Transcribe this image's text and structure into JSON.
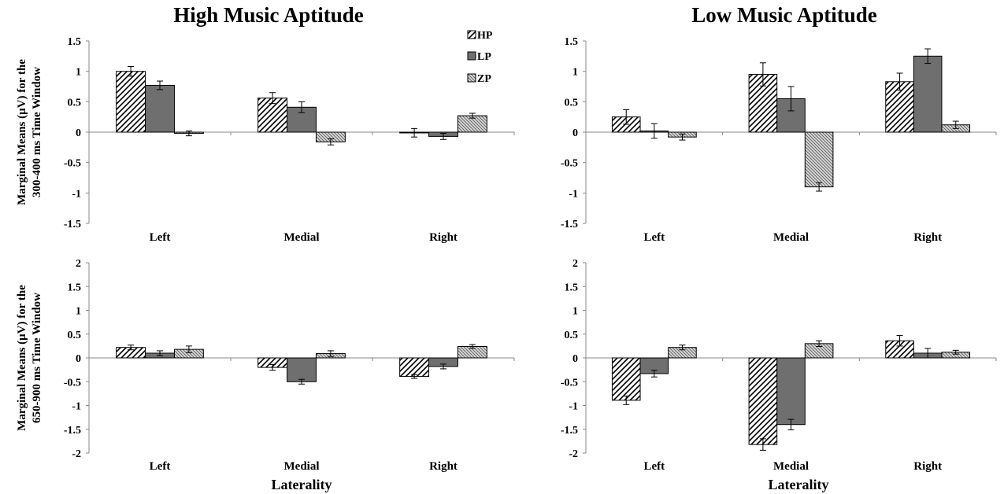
{
  "figure": {
    "column_titles": [
      "High Music Aptitude",
      "Low Music Aptitude"
    ],
    "row_ylabels": [
      [
        "Marginal Means (μV) for the",
        "300-400 ms Time Window"
      ],
      [
        "Marginal Means (μV) for the",
        "650-900 ms Time Window"
      ]
    ],
    "xlabel": "Laterality",
    "legend": [
      "HP",
      "LP",
      "ZP"
    ],
    "colors": {
      "HP": "#ffffff",
      "LP": "#6f6f6f",
      "ZP": "#d9d9d9",
      "stroke": "#000000"
    }
  },
  "chart_data": [
    {
      "type": "bar",
      "title": "High Music Aptitude",
      "categories": [
        "Left",
        "Medial",
        "Right"
      ],
      "ylim": [
        -1.5,
        1.5
      ],
      "yticks": [
        "1.5",
        "1",
        "0.5",
        "0",
        "-0.5",
        "-1",
        "-1.5"
      ],
      "series": [
        {
          "name": "HP",
          "values": [
            1.0,
            0.56,
            -0.01
          ],
          "errors": [
            0.08,
            0.09,
            0.07
          ]
        },
        {
          "name": "LP",
          "values": [
            0.77,
            0.41,
            -0.07
          ],
          "errors": [
            0.07,
            0.09,
            0.05
          ]
        },
        {
          "name": "ZP",
          "values": [
            -0.02,
            -0.16,
            0.27
          ],
          "errors": [
            0.04,
            0.05,
            0.04
          ]
        }
      ]
    },
    {
      "type": "bar",
      "title": "Low Music Aptitude",
      "categories": [
        "Left",
        "Medial",
        "Right"
      ],
      "ylim": [
        -1.5,
        1.5
      ],
      "yticks": [
        "1.5",
        "1",
        "0.5",
        "0",
        "-0.5",
        "-1",
        "-1.5"
      ],
      "series": [
        {
          "name": "HP",
          "values": [
            0.25,
            0.95,
            0.83
          ],
          "errors": [
            0.12,
            0.19,
            0.14
          ]
        },
        {
          "name": "LP",
          "values": [
            0.02,
            0.55,
            1.25
          ],
          "errors": [
            0.12,
            0.2,
            0.12
          ]
        },
        {
          "name": "ZP",
          "values": [
            -0.08,
            -0.9,
            0.12
          ],
          "errors": [
            0.05,
            0.07,
            0.06
          ]
        }
      ]
    },
    {
      "type": "bar",
      "title": "High Music Aptitude",
      "categories": [
        "Left",
        "Medial",
        "Right"
      ],
      "xlabel": "Laterality",
      "ylim": [
        -2,
        2
      ],
      "yticks": [
        "2",
        "1.5",
        "1",
        "0.5",
        "0",
        "-0.5",
        "-1",
        "-1.5",
        "-2"
      ],
      "series": [
        {
          "name": "HP",
          "values": [
            0.22,
            -0.2,
            -0.39
          ],
          "errors": [
            0.05,
            0.06,
            0.04
          ]
        },
        {
          "name": "LP",
          "values": [
            0.1,
            -0.5,
            -0.18
          ],
          "errors": [
            0.05,
            0.05,
            0.05
          ]
        },
        {
          "name": "ZP",
          "values": [
            0.18,
            0.09,
            0.24
          ],
          "errors": [
            0.07,
            0.06,
            0.04
          ]
        }
      ]
    },
    {
      "type": "bar",
      "title": "Low Music Aptitude",
      "categories": [
        "Left",
        "Medial",
        "Right"
      ],
      "xlabel": "Laterality",
      "ylim": [
        -2,
        2
      ],
      "yticks": [
        "2",
        "1.5",
        "1",
        "0.5",
        "0",
        "-0.5",
        "-1",
        "-1.5",
        "-2"
      ],
      "series": [
        {
          "name": "HP",
          "values": [
            -0.89,
            -1.82,
            0.36
          ],
          "errors": [
            0.09,
            0.12,
            0.11
          ]
        },
        {
          "name": "LP",
          "values": [
            -0.33,
            -1.4,
            0.1
          ],
          "errors": [
            0.07,
            0.11,
            0.1
          ]
        },
        {
          "name": "ZP",
          "values": [
            0.22,
            0.3,
            0.12
          ],
          "errors": [
            0.05,
            0.06,
            0.04
          ]
        }
      ]
    }
  ]
}
